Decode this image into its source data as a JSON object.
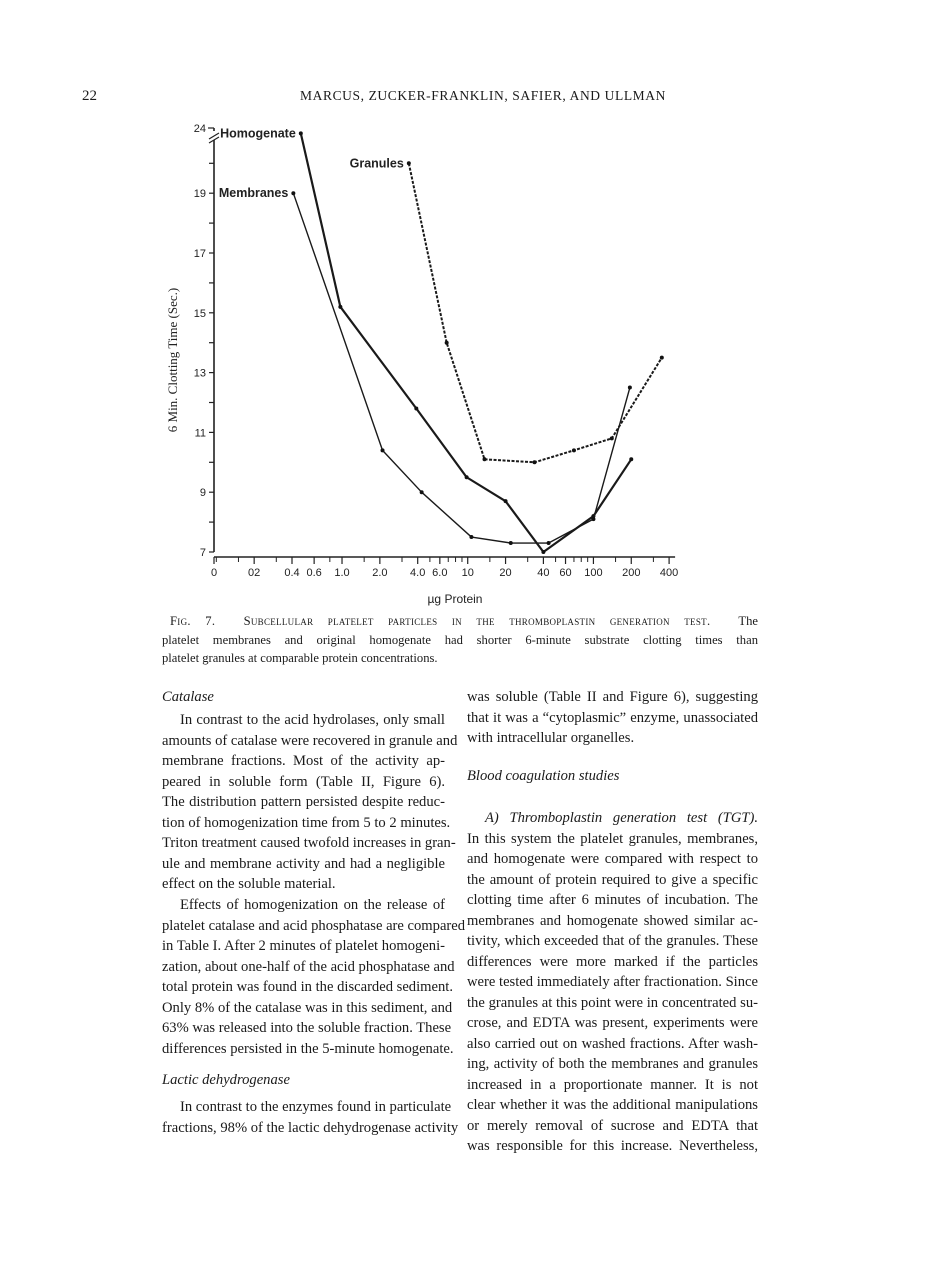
{
  "header": {
    "page_number": "22",
    "running_head": "MARCUS, ZUCKER-FRANKLIN, SAFIER, AND ULLMAN"
  },
  "chart_data": {
    "type": "line",
    "title": "",
    "xlabel": "µg Protein",
    "ylabel": "6 Min. Clotting Time (Sec.)",
    "x_scale": "log",
    "x_ticks": [
      "0",
      "02",
      "0.4",
      "0.6",
      "1.0",
      "2.0",
      "4.0",
      "6.0",
      "10",
      "20",
      "40",
      "60",
      "100",
      "200",
      "400"
    ],
    "x_tick_values": [
      0,
      0.2,
      0.4,
      0.6,
      1.0,
      2.0,
      4.0,
      6.0,
      10,
      20,
      40,
      60,
      100,
      200,
      400
    ],
    "y_ticks": [
      "7",
      "9",
      "11",
      "13",
      "15",
      "17",
      "19",
      "24"
    ],
    "y_tick_values": [
      7,
      9,
      11,
      13,
      15,
      17,
      19,
      24
    ],
    "y_axis_break": [
      20,
      24
    ],
    "ylim": [
      7,
      24
    ],
    "grid": false,
    "legend": "labels at series start",
    "series": [
      {
        "name": "Homogenate",
        "style": "solid-thick",
        "x": [
          0.47,
          0.97,
          3.9,
          9.8,
          20,
          40,
          100,
          200
        ],
        "y": [
          24,
          15.2,
          11.8,
          9.5,
          8.7,
          7.0,
          8.2,
          10.1
        ]
      },
      {
        "name": "Membranes",
        "style": "solid-thin",
        "x": [
          0.41,
          2.1,
          4.3,
          10.7,
          22,
          44,
          100,
          195
        ],
        "y": [
          19,
          10.4,
          9.0,
          7.5,
          7.3,
          7.3,
          8.1,
          12.5
        ]
      },
      {
        "name": "Granules",
        "style": "dashed",
        "x": [
          3.4,
          6.8,
          13.6,
          34,
          70,
          140,
          350
        ],
        "y": [
          20,
          14.0,
          10.1,
          10.0,
          10.4,
          10.8,
          13.5
        ]
      }
    ]
  },
  "caption": {
    "fig_label": "Fig. 7.",
    "fig_title": "Subcellular platelet particles in the thromboplastin generation test.",
    "line1_rest": "The",
    "line2": "platelet membranes and original homogenate had shorter 6-minute substrate clotting times than",
    "line3": "platelet granules at comparable protein concentrations."
  },
  "left_column": {
    "heading1": "Catalase",
    "para1": [
      "In contrast to the acid hydrolases, only small",
      "amounts of catalase were recovered in granule and",
      "membrane fractions.  Most of the activity ap-",
      "peared in soluble form (Table II, Figure 6).",
      "The distribution pattern persisted despite reduc-",
      "tion of homogenization time from 5 to 2 minutes.",
      "Triton treatment caused twofold increases in gran-",
      "ule and membrane activity and had a negligible",
      "effect on the soluble material."
    ],
    "para2": [
      "Effects of homogenization on the release of",
      "platelet catalase and acid phosphatase are compared",
      "in Table I.  After 2 minutes of platelet homogeni-",
      "zation, about one-half of the acid phosphatase and",
      "total protein was found in the discarded sediment.",
      "Only 8% of the catalase was in this sediment, and",
      "63% was released into the soluble fraction.  These",
      "differences persisted in the 5-minute homogenate."
    ],
    "heading2": "Lactic dehydrogenase",
    "para3": [
      "In contrast to the enzymes found in particulate",
      "fractions, 98% of the lactic dehydrogenase activity"
    ]
  },
  "right_column": {
    "para1": [
      "was soluble (Table II and Figure 6), suggesting",
      "that it was a “cytoplasmic” enzyme, unassociated",
      "with intracellular organelles."
    ],
    "heading": "Blood coagulation studies",
    "para2_first_italic": "A) Thromboplastin generation test (TGT).",
    "para2": [
      "In this system the platelet granules, membranes,",
      "and homogenate were compared with respect to",
      "the amount of protein required to give a specific",
      "clotting time after 6 minutes of incubation.  The",
      "membranes and homogenate showed similar ac-",
      "tivity, which exceeded that of the granules.  These",
      "differences were more marked if the particles",
      "were tested immediately after fractionation.  Since",
      "the granules at this point were in concentrated su-",
      "crose, and EDTA was present, experiments were",
      "also carried out on washed fractions.  After wash-",
      "ing, activity of both the membranes and granules",
      "increased in a proportionate manner.  It is not",
      "clear whether it was the additional manipulations",
      "or merely removal of sucrose and EDTA that",
      "was responsible for this increase.  Nevertheless,"
    ]
  }
}
